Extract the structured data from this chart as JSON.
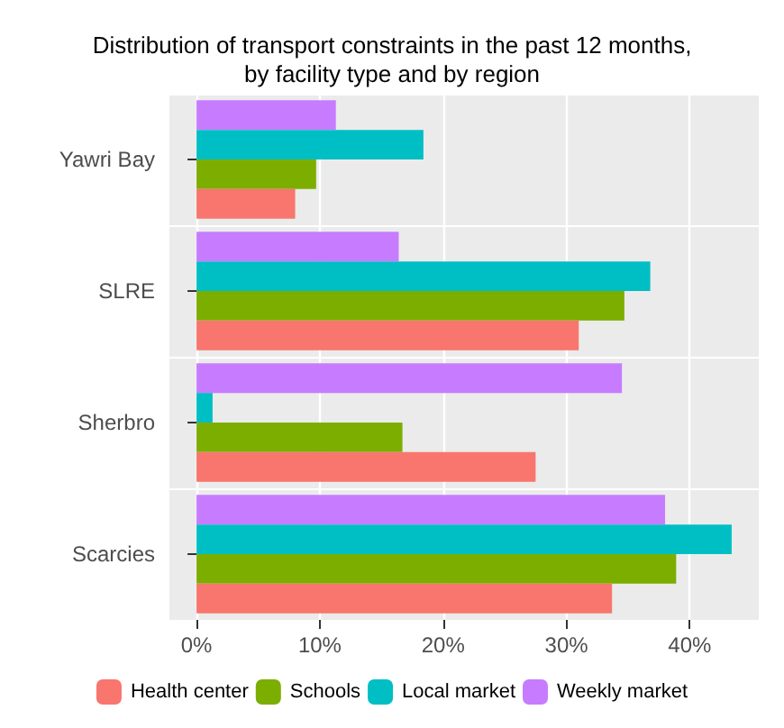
{
  "chart_data": {
    "type": "bar",
    "orientation": "horizontal",
    "title": "Distribution of transport constraints in the past 12 months,\nby facility type and by region",
    "categories": [
      "Yawri Bay",
      "SLRE",
      "Sherbro",
      "Scarcies"
    ],
    "series": [
      {
        "name": "Health center",
        "color": "#f8766d",
        "values": [
          8.0,
          31.0,
          27.5,
          33.7
        ]
      },
      {
        "name": "Schools",
        "color": "#7cae00",
        "values": [
          9.7,
          34.7,
          16.7,
          38.9
        ]
      },
      {
        "name": "Local market",
        "color": "#00bfc4",
        "values": [
          18.4,
          36.8,
          1.3,
          43.4
        ]
      },
      {
        "name": "Weekly market",
        "color": "#c77cff",
        "values": [
          11.3,
          16.4,
          34.5,
          38.0
        ]
      }
    ],
    "xlim": [
      -2.2,
      45.6
    ],
    "xticks": [
      {
        "value": 0,
        "label": "0%"
      },
      {
        "value": 10,
        "label": "10%"
      },
      {
        "value": 20,
        "label": "20%"
      },
      {
        "value": 30,
        "label": "30%"
      },
      {
        "value": 40,
        "label": "40%"
      }
    ],
    "grid": true,
    "legend": "bottom"
  }
}
